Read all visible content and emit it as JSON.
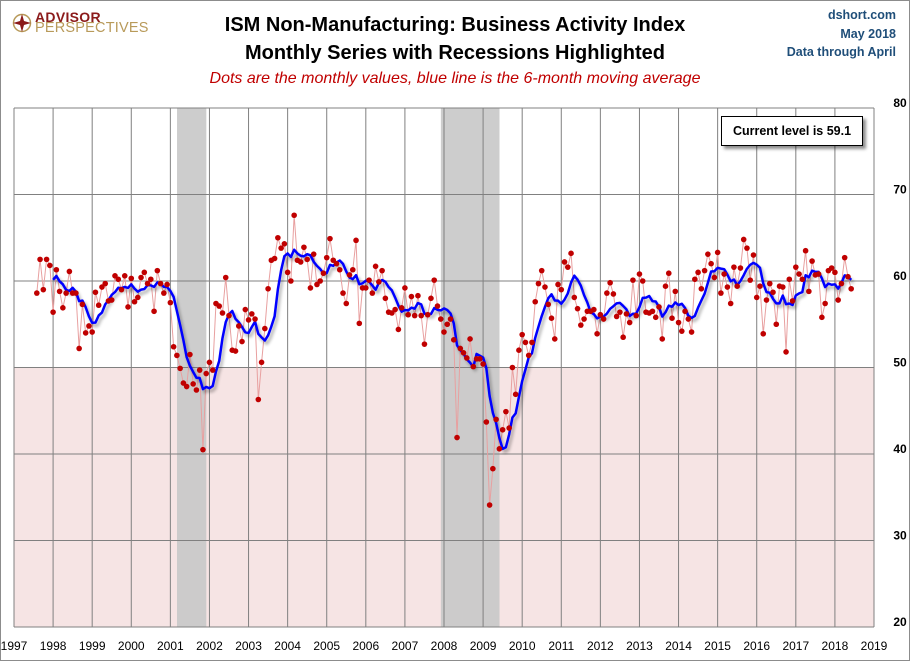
{
  "header": {
    "logo_top": "ADVISOR",
    "logo_bottom": "PERSPECTIVES",
    "title_line1": "ISM Non-Manufacturing: Business Activity Index",
    "title_line2": "Monthly Series with Recessions Highlighted",
    "subtitle": "Dots are the monthly values, blue line is the 6-month moving average",
    "source": "dshort.com",
    "date": "May 2018",
    "data_note": "Data through April"
  },
  "callout": "Current level is 59.1",
  "colors": {
    "dot": "#c00000",
    "dot_line": "#e8a0a0",
    "ma_line": "#0000ff",
    "recession": "#c8c8c8",
    "contraction_zone": "#f6e4e4",
    "grid": "#808080"
  },
  "chart_data": {
    "type": "line",
    "title": "ISM Non-Manufacturing: Business Activity Index",
    "subtitle": "Monthly Series with Recessions Highlighted",
    "xlabel": "",
    "ylabel": "",
    "x_ticks": [
      "1997",
      "1998",
      "1999",
      "2000",
      "2001",
      "2002",
      "2003",
      "2004",
      "2005",
      "2006",
      "2007",
      "2008",
      "2009",
      "2010",
      "2011",
      "2012",
      "2013",
      "2014",
      "2015",
      "2016",
      "2017",
      "2018",
      "2019"
    ],
    "y_ticks": [
      20,
      30,
      40,
      50,
      60,
      70,
      80
    ],
    "xlim": [
      1997,
      2019
    ],
    "ylim": [
      20,
      80
    ],
    "grid": true,
    "y_axis_side": "right",
    "contraction_threshold": 50,
    "start": "1997-08",
    "recessions": [
      {
        "start": 2001.17,
        "end": 2001.92
      },
      {
        "start": 2007.92,
        "end": 2009.42
      }
    ],
    "series": [
      {
        "name": "Monthly values",
        "style": "dots",
        "values": [
          58.6,
          62.5,
          59.0,
          62.5,
          61.8,
          56.4,
          61.3,
          58.8,
          56.9,
          58.6,
          61.1,
          58.6,
          58.6,
          52.2,
          57.3,
          54.0,
          54.8,
          54.1,
          58.7,
          57.2,
          59.3,
          59.7,
          57.7,
          57.8,
          60.6,
          60.2,
          59.0,
          60.6,
          57.0,
          60.3,
          57.6,
          58.1,
          60.4,
          61.0,
          59.7,
          60.2,
          56.5,
          61.2,
          59.7,
          58.6,
          59.6,
          57.5,
          52.4,
          51.4,
          49.9,
          48.2,
          47.8,
          51.5,
          48.1,
          47.4,
          49.7,
          40.5,
          49.3,
          50.6,
          49.7,
          57.4,
          57.1,
          56.3,
          60.4,
          56.0,
          52.0,
          51.9,
          54.8,
          53.0,
          56.7,
          55.5,
          56.2,
          55.6,
          46.3,
          50.6,
          54.5,
          59.1,
          62.4,
          62.6,
          65.0,
          63.8,
          64.3,
          61.0,
          60.0,
          67.6,
          62.4,
          62.2,
          63.9,
          62.5,
          59.2,
          63.1,
          59.6,
          60.0,
          60.9,
          62.7,
          64.9,
          62.4,
          62.0,
          61.3,
          58.6,
          57.4,
          60.7,
          61.3,
          64.7,
          55.1,
          59.2,
          59.2,
          60.1,
          58.6,
          61.7,
          59.9,
          61.2,
          58.0,
          56.4,
          56.3,
          56.7,
          54.4,
          56.9,
          59.2,
          56.1,
          58.2,
          56.0,
          58.3,
          56.0,
          52.7,
          56.1,
          58.0,
          60.1,
          57.1,
          55.6,
          54.1,
          55.0,
          55.6,
          53.2,
          41.9,
          52.2,
          51.7,
          51.1,
          53.3,
          50.1,
          51.0,
          51.0,
          50.4,
          43.7,
          34.1,
          38.3,
          44.0,
          40.6,
          42.8,
          44.9,
          43.0,
          50.0,
          46.9,
          52.0,
          53.8,
          52.9,
          51.4,
          52.9,
          57.6,
          59.7,
          61.2,
          59.3,
          57.3,
          55.7,
          53.3,
          59.6,
          59.0,
          62.2,
          61.6,
          63.2,
          58.1,
          56.8,
          54.9,
          55.6,
          56.5,
          56.5,
          56.7,
          53.9,
          56.1,
          55.6,
          58.6,
          59.8,
          58.5,
          55.9,
          56.4,
          53.5,
          56.2,
          55.2,
          60.1,
          56.0,
          60.8,
          60.0,
          56.4,
          56.3,
          56.5,
          55.8,
          57.0,
          53.3,
          59.4,
          60.9,
          55.7,
          58.8,
          55.2,
          54.2,
          56.5,
          55.6,
          54.1,
          60.2,
          61.0,
          59.1,
          61.2,
          63.1,
          62.0,
          60.4,
          63.3,
          58.6,
          60.8,
          59.3,
          57.4,
          61.6,
          59.4,
          61.5,
          64.8,
          63.8,
          60.1,
          63.0,
          58.1,
          59.4,
          53.9,
          57.8,
          59.7,
          58.7,
          55.0,
          59.4,
          59.3,
          51.8,
          60.2,
          57.7,
          61.6,
          60.8,
          60.2,
          63.5,
          58.8,
          62.3,
          60.7,
          60.8,
          55.8,
          57.4,
          61.2,
          61.5,
          61.0,
          57.8,
          59.7,
          62.7,
          60.5,
          59.1
        ]
      },
      {
        "name": "6-month moving average",
        "style": "line",
        "window": 6
      }
    ]
  }
}
